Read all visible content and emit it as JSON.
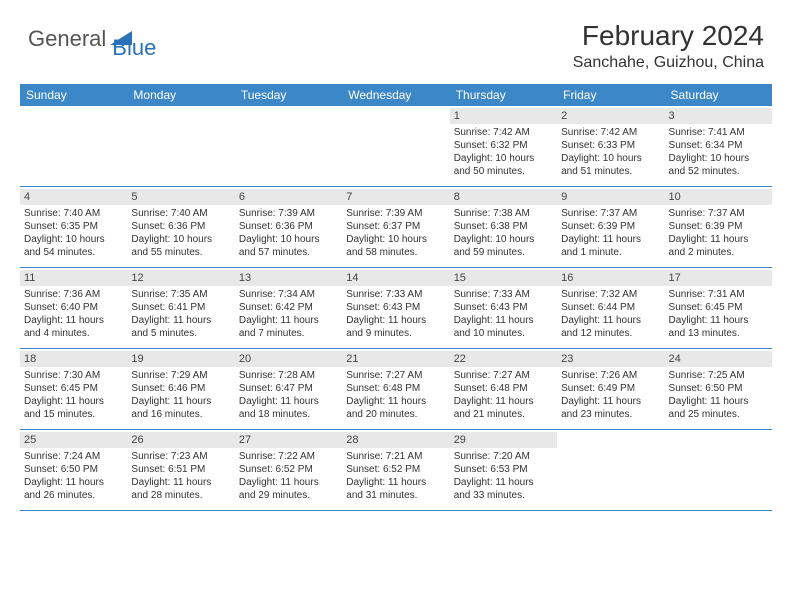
{
  "logo": {
    "general": "General",
    "blue": "Blue",
    "triangle_color": "#2a71b8"
  },
  "title": "February 2024",
  "location": "Sanchahe, Guizhou, China",
  "colors": {
    "header_bar": "#3b87c8",
    "row_divider": "#3b87c8",
    "day_band": "#e8e8e8",
    "text": "#333333",
    "header_text": "#ffffff"
  },
  "day_names": [
    "Sunday",
    "Monday",
    "Tuesday",
    "Wednesday",
    "Thursday",
    "Friday",
    "Saturday"
  ],
  "weeks": [
    [
      {
        "empty": true
      },
      {
        "empty": true
      },
      {
        "empty": true
      },
      {
        "empty": true
      },
      {
        "num": "1",
        "sunrise": "Sunrise: 7:42 AM",
        "sunset": "Sunset: 6:32 PM",
        "daylight1": "Daylight: 10 hours",
        "daylight2": "and 50 minutes."
      },
      {
        "num": "2",
        "sunrise": "Sunrise: 7:42 AM",
        "sunset": "Sunset: 6:33 PM",
        "daylight1": "Daylight: 10 hours",
        "daylight2": "and 51 minutes."
      },
      {
        "num": "3",
        "sunrise": "Sunrise: 7:41 AM",
        "sunset": "Sunset: 6:34 PM",
        "daylight1": "Daylight: 10 hours",
        "daylight2": "and 52 minutes."
      }
    ],
    [
      {
        "num": "4",
        "sunrise": "Sunrise: 7:40 AM",
        "sunset": "Sunset: 6:35 PM",
        "daylight1": "Daylight: 10 hours",
        "daylight2": "and 54 minutes."
      },
      {
        "num": "5",
        "sunrise": "Sunrise: 7:40 AM",
        "sunset": "Sunset: 6:36 PM",
        "daylight1": "Daylight: 10 hours",
        "daylight2": "and 55 minutes."
      },
      {
        "num": "6",
        "sunrise": "Sunrise: 7:39 AM",
        "sunset": "Sunset: 6:36 PM",
        "daylight1": "Daylight: 10 hours",
        "daylight2": "and 57 minutes."
      },
      {
        "num": "7",
        "sunrise": "Sunrise: 7:39 AM",
        "sunset": "Sunset: 6:37 PM",
        "daylight1": "Daylight: 10 hours",
        "daylight2": "and 58 minutes."
      },
      {
        "num": "8",
        "sunrise": "Sunrise: 7:38 AM",
        "sunset": "Sunset: 6:38 PM",
        "daylight1": "Daylight: 10 hours",
        "daylight2": "and 59 minutes."
      },
      {
        "num": "9",
        "sunrise": "Sunrise: 7:37 AM",
        "sunset": "Sunset: 6:39 PM",
        "daylight1": "Daylight: 11 hours",
        "daylight2": "and 1 minute."
      },
      {
        "num": "10",
        "sunrise": "Sunrise: 7:37 AM",
        "sunset": "Sunset: 6:39 PM",
        "daylight1": "Daylight: 11 hours",
        "daylight2": "and 2 minutes."
      }
    ],
    [
      {
        "num": "11",
        "sunrise": "Sunrise: 7:36 AM",
        "sunset": "Sunset: 6:40 PM",
        "daylight1": "Daylight: 11 hours",
        "daylight2": "and 4 minutes."
      },
      {
        "num": "12",
        "sunrise": "Sunrise: 7:35 AM",
        "sunset": "Sunset: 6:41 PM",
        "daylight1": "Daylight: 11 hours",
        "daylight2": "and 5 minutes."
      },
      {
        "num": "13",
        "sunrise": "Sunrise: 7:34 AM",
        "sunset": "Sunset: 6:42 PM",
        "daylight1": "Daylight: 11 hours",
        "daylight2": "and 7 minutes."
      },
      {
        "num": "14",
        "sunrise": "Sunrise: 7:33 AM",
        "sunset": "Sunset: 6:43 PM",
        "daylight1": "Daylight: 11 hours",
        "daylight2": "and 9 minutes."
      },
      {
        "num": "15",
        "sunrise": "Sunrise: 7:33 AM",
        "sunset": "Sunset: 6:43 PM",
        "daylight1": "Daylight: 11 hours",
        "daylight2": "and 10 minutes."
      },
      {
        "num": "16",
        "sunrise": "Sunrise: 7:32 AM",
        "sunset": "Sunset: 6:44 PM",
        "daylight1": "Daylight: 11 hours",
        "daylight2": "and 12 minutes."
      },
      {
        "num": "17",
        "sunrise": "Sunrise: 7:31 AM",
        "sunset": "Sunset: 6:45 PM",
        "daylight1": "Daylight: 11 hours",
        "daylight2": "and 13 minutes."
      }
    ],
    [
      {
        "num": "18",
        "sunrise": "Sunrise: 7:30 AM",
        "sunset": "Sunset: 6:45 PM",
        "daylight1": "Daylight: 11 hours",
        "daylight2": "and 15 minutes."
      },
      {
        "num": "19",
        "sunrise": "Sunrise: 7:29 AM",
        "sunset": "Sunset: 6:46 PM",
        "daylight1": "Daylight: 11 hours",
        "daylight2": "and 16 minutes."
      },
      {
        "num": "20",
        "sunrise": "Sunrise: 7:28 AM",
        "sunset": "Sunset: 6:47 PM",
        "daylight1": "Daylight: 11 hours",
        "daylight2": "and 18 minutes."
      },
      {
        "num": "21",
        "sunrise": "Sunrise: 7:27 AM",
        "sunset": "Sunset: 6:48 PM",
        "daylight1": "Daylight: 11 hours",
        "daylight2": "and 20 minutes."
      },
      {
        "num": "22",
        "sunrise": "Sunrise: 7:27 AM",
        "sunset": "Sunset: 6:48 PM",
        "daylight1": "Daylight: 11 hours",
        "daylight2": "and 21 minutes."
      },
      {
        "num": "23",
        "sunrise": "Sunrise: 7:26 AM",
        "sunset": "Sunset: 6:49 PM",
        "daylight1": "Daylight: 11 hours",
        "daylight2": "and 23 minutes."
      },
      {
        "num": "24",
        "sunrise": "Sunrise: 7:25 AM",
        "sunset": "Sunset: 6:50 PM",
        "daylight1": "Daylight: 11 hours",
        "daylight2": "and 25 minutes."
      }
    ],
    [
      {
        "num": "25",
        "sunrise": "Sunrise: 7:24 AM",
        "sunset": "Sunset: 6:50 PM",
        "daylight1": "Daylight: 11 hours",
        "daylight2": "and 26 minutes."
      },
      {
        "num": "26",
        "sunrise": "Sunrise: 7:23 AM",
        "sunset": "Sunset: 6:51 PM",
        "daylight1": "Daylight: 11 hours",
        "daylight2": "and 28 minutes."
      },
      {
        "num": "27",
        "sunrise": "Sunrise: 7:22 AM",
        "sunset": "Sunset: 6:52 PM",
        "daylight1": "Daylight: 11 hours",
        "daylight2": "and 29 minutes."
      },
      {
        "num": "28",
        "sunrise": "Sunrise: 7:21 AM",
        "sunset": "Sunset: 6:52 PM",
        "daylight1": "Daylight: 11 hours",
        "daylight2": "and 31 minutes."
      },
      {
        "num": "29",
        "sunrise": "Sunrise: 7:20 AM",
        "sunset": "Sunset: 6:53 PM",
        "daylight1": "Daylight: 11 hours",
        "daylight2": "and 33 minutes."
      },
      {
        "empty": true
      },
      {
        "empty": true
      }
    ]
  ]
}
